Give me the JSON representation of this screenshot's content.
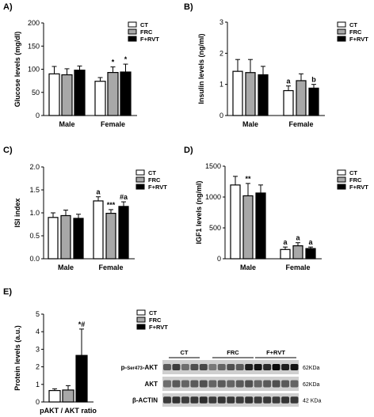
{
  "legend_labels": [
    "CT",
    "FRC",
    "F+RVT"
  ],
  "colors": {
    "CT": "#ffffff",
    "FRC": "#a8a8a8",
    "F+RVT": "#000000",
    "stroke": "#000000"
  },
  "chart_data": [
    {
      "id": "A",
      "panel_label": "A)",
      "type": "bar",
      "ylabel": "Glucose levels (mg/dl)",
      "ylim": [
        0,
        200
      ],
      "yticks": [
        "0",
        "50",
        "100",
        "150",
        "200"
      ],
      "categories": [
        "Male",
        "Female"
      ],
      "legend_position": "top-right",
      "grid": false,
      "series": [
        {
          "name": "CT",
          "values": [
            90,
            74
          ],
          "errors": [
            16,
            8
          ],
          "annotations": [
            "",
            ""
          ]
        },
        {
          "name": "FRC",
          "values": [
            88,
            93
          ],
          "errors": [
            13,
            12
          ],
          "annotations": [
            "",
            "*"
          ]
        },
        {
          "name": "F+RVT",
          "values": [
            98,
            94
          ],
          "errors": [
            9,
            17
          ],
          "annotations": [
            "",
            "*"
          ]
        }
      ]
    },
    {
      "id": "B",
      "panel_label": "B)",
      "type": "bar",
      "ylabel": "Insulin levels (ng/ml)",
      "ylim": [
        0,
        3
      ],
      "yticks": [
        "0",
        "1",
        "2",
        "3"
      ],
      "categories": [
        "Male",
        "Female"
      ],
      "legend_position": "top-right",
      "grid": false,
      "series": [
        {
          "name": "CT",
          "values": [
            1.42,
            0.8
          ],
          "errors": [
            0.38,
            0.15
          ],
          "annotations": [
            "",
            "a"
          ]
        },
        {
          "name": "FRC",
          "values": [
            1.38,
            1.12
          ],
          "errors": [
            0.42,
            0.22
          ],
          "annotations": [
            "",
            ""
          ]
        },
        {
          "name": "F+RVT",
          "values": [
            1.31,
            0.88
          ],
          "errors": [
            0.27,
            0.12
          ],
          "annotations": [
            "",
            "b"
          ]
        }
      ]
    },
    {
      "id": "C",
      "panel_label": "C)",
      "type": "bar",
      "ylabel": "ISI index",
      "ylim": [
        0,
        2.0
      ],
      "yticks": [
        "0.0",
        "0.5",
        "1.0",
        "1.5",
        "2.0"
      ],
      "categories": [
        "Male",
        "Female"
      ],
      "legend_position": "top-right",
      "grid": false,
      "series": [
        {
          "name": "CT",
          "values": [
            0.9,
            1.26
          ],
          "errors": [
            0.1,
            0.09
          ],
          "annotations": [
            "",
            "a"
          ]
        },
        {
          "name": "FRC",
          "values": [
            0.94,
            0.99
          ],
          "errors": [
            0.12,
            0.08
          ],
          "annotations": [
            "",
            "***"
          ]
        },
        {
          "name": "F+RVT",
          "values": [
            0.88,
            1.14
          ],
          "errors": [
            0.09,
            0.1
          ],
          "annotations": [
            "",
            "#a"
          ]
        }
      ]
    },
    {
      "id": "D",
      "panel_label": "D)",
      "type": "bar",
      "ylabel": "IGF1 levels (ng/ml)",
      "ylim": [
        0,
        1500
      ],
      "yticks": [
        "0",
        "500",
        "1000",
        "1500"
      ],
      "categories": [
        "Male",
        "Female"
      ],
      "legend_position": "top-right",
      "grid": false,
      "series": [
        {
          "name": "CT",
          "values": [
            1195,
            150
          ],
          "errors": [
            140,
            40
          ],
          "annotations": [
            "",
            "a"
          ]
        },
        {
          "name": "FRC",
          "values": [
            1020,
            210
          ],
          "errors": [
            200,
            50
          ],
          "annotations": [
            "**",
            "a"
          ]
        },
        {
          "name": "F+RVT",
          "values": [
            1065,
            165
          ],
          "errors": [
            130,
            25
          ],
          "annotations": [
            "",
            "a"
          ]
        }
      ]
    },
    {
      "id": "E",
      "panel_label": "E)",
      "type": "bar",
      "ylabel": "Protein levels (a.u.)",
      "ylim": [
        0,
        5
      ],
      "yticks": [
        "0",
        "1",
        "2",
        "3",
        "4",
        "5"
      ],
      "categories": [
        "pAKT / AKT ratio"
      ],
      "legend_position": "top-right",
      "grid": false,
      "series": [
        {
          "name": "CT",
          "values": [
            0.65
          ],
          "errors": [
            0.1
          ],
          "annotations": [
            ""
          ]
        },
        {
          "name": "FRC",
          "values": [
            0.68
          ],
          "errors": [
            0.25
          ],
          "annotations": [
            ""
          ]
        },
        {
          "name": "F+RVT",
          "values": [
            2.65
          ],
          "errors": [
            1.5
          ],
          "annotations": [
            "*#"
          ]
        }
      ]
    }
  ],
  "blot": {
    "groups": [
      "CT",
      "FRC",
      "F+RVT"
    ],
    "rows": [
      {
        "label": "p-Ser473-AKT",
        "label_prefix": "p-",
        "label_sub": "Ser473",
        "label_suffix": "-AKT",
        "size": "62KDa"
      },
      {
        "label": "AKT",
        "size": "62KDa"
      },
      {
        "label": "β-ACTIN",
        "size": "42 KDa"
      }
    ]
  }
}
